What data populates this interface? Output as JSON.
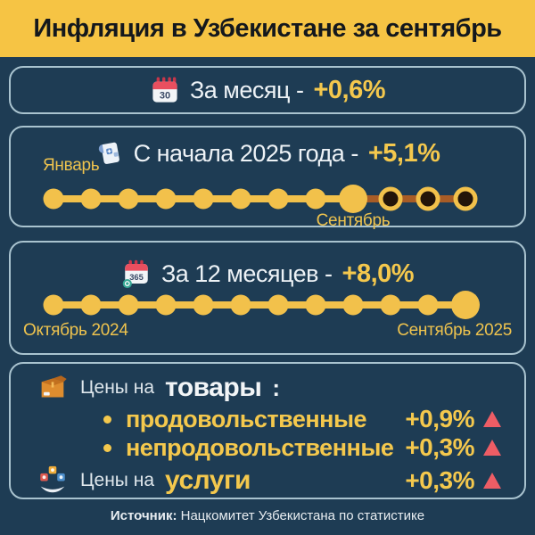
{
  "header": {
    "title": "Инфляция в Узбекистане за сентябрь"
  },
  "panels": {
    "month": {
      "icon": "calendar-30",
      "label": "За месяц -",
      "value": "+0,6%"
    },
    "ytd": {
      "icon": "calculation-scroll",
      "label": "С начала 2025 года -",
      "value": "+5,1%",
      "start_label": "Январь",
      "current_label": "Сентябрь",
      "timeline": {
        "total": 12,
        "filled": 9,
        "emphasis": 9
      }
    },
    "year": {
      "icon": "calendar-365",
      "label": "За 12 месяцев -",
      "value": "+8,0%",
      "start_label": "Октябрь 2024",
      "end_label": "Сентябрь 2025",
      "timeline": {
        "total": 12,
        "filled": 12,
        "emphasis": 12
      }
    },
    "categories": {
      "goods": {
        "icon": "package",
        "prefix": "Цены на",
        "label": "товары",
        "suffix": ":",
        "items": [
          {
            "name": "продовольственные",
            "value": "+0,9%",
            "direction": "up"
          },
          {
            "name": "непродовольственные",
            "value": "+0,3%",
            "direction": "up"
          }
        ]
      },
      "services": {
        "icon": "services-hand",
        "prefix": "Цены на",
        "label": "услуги",
        "value": "+0,3%",
        "direction": "up"
      }
    }
  },
  "footer": {
    "source_label": "Источник:",
    "source_text": "Нацкомитет Узбекистана по статистике"
  },
  "colors": {
    "header_bg": "#F6C444",
    "background": "#1E3C54",
    "panel_border": "#A9C3CF",
    "accent_yellow": "#F2C14B",
    "future_line_brown": "#A85C26",
    "up_red": "#EE5D65",
    "text_white": "#EEF3F7"
  },
  "chart_data": {
    "type": "table",
    "title": "Инфляция в Узбекистане за сентябрь",
    "rows": [
      {
        "metric": "За месяц",
        "value": "+0,6%",
        "value_pct": 0.6
      },
      {
        "metric": "С начала 2025 года",
        "value": "+5,1%",
        "value_pct": 5.1,
        "period_start": "Январь",
        "period_current": "Сентябрь",
        "months_elapsed": 9,
        "months_total": 12
      },
      {
        "metric": "За 12 месяцев",
        "value": "+8,0%",
        "value_pct": 8.0,
        "period_start": "Октябрь 2024",
        "period_end": "Сентябрь 2025",
        "months_total": 12
      },
      {
        "metric": "Цены на товары: продовольственные",
        "value": "+0,9%",
        "value_pct": 0.9,
        "direction": "up"
      },
      {
        "metric": "Цены на товары: непродовольственные",
        "value": "+0,3%",
        "value_pct": 0.3,
        "direction": "up"
      },
      {
        "metric": "Цены на услуги",
        "value": "+0,3%",
        "value_pct": 0.3,
        "direction": "up"
      }
    ],
    "legend_position": "none",
    "grid": false
  }
}
